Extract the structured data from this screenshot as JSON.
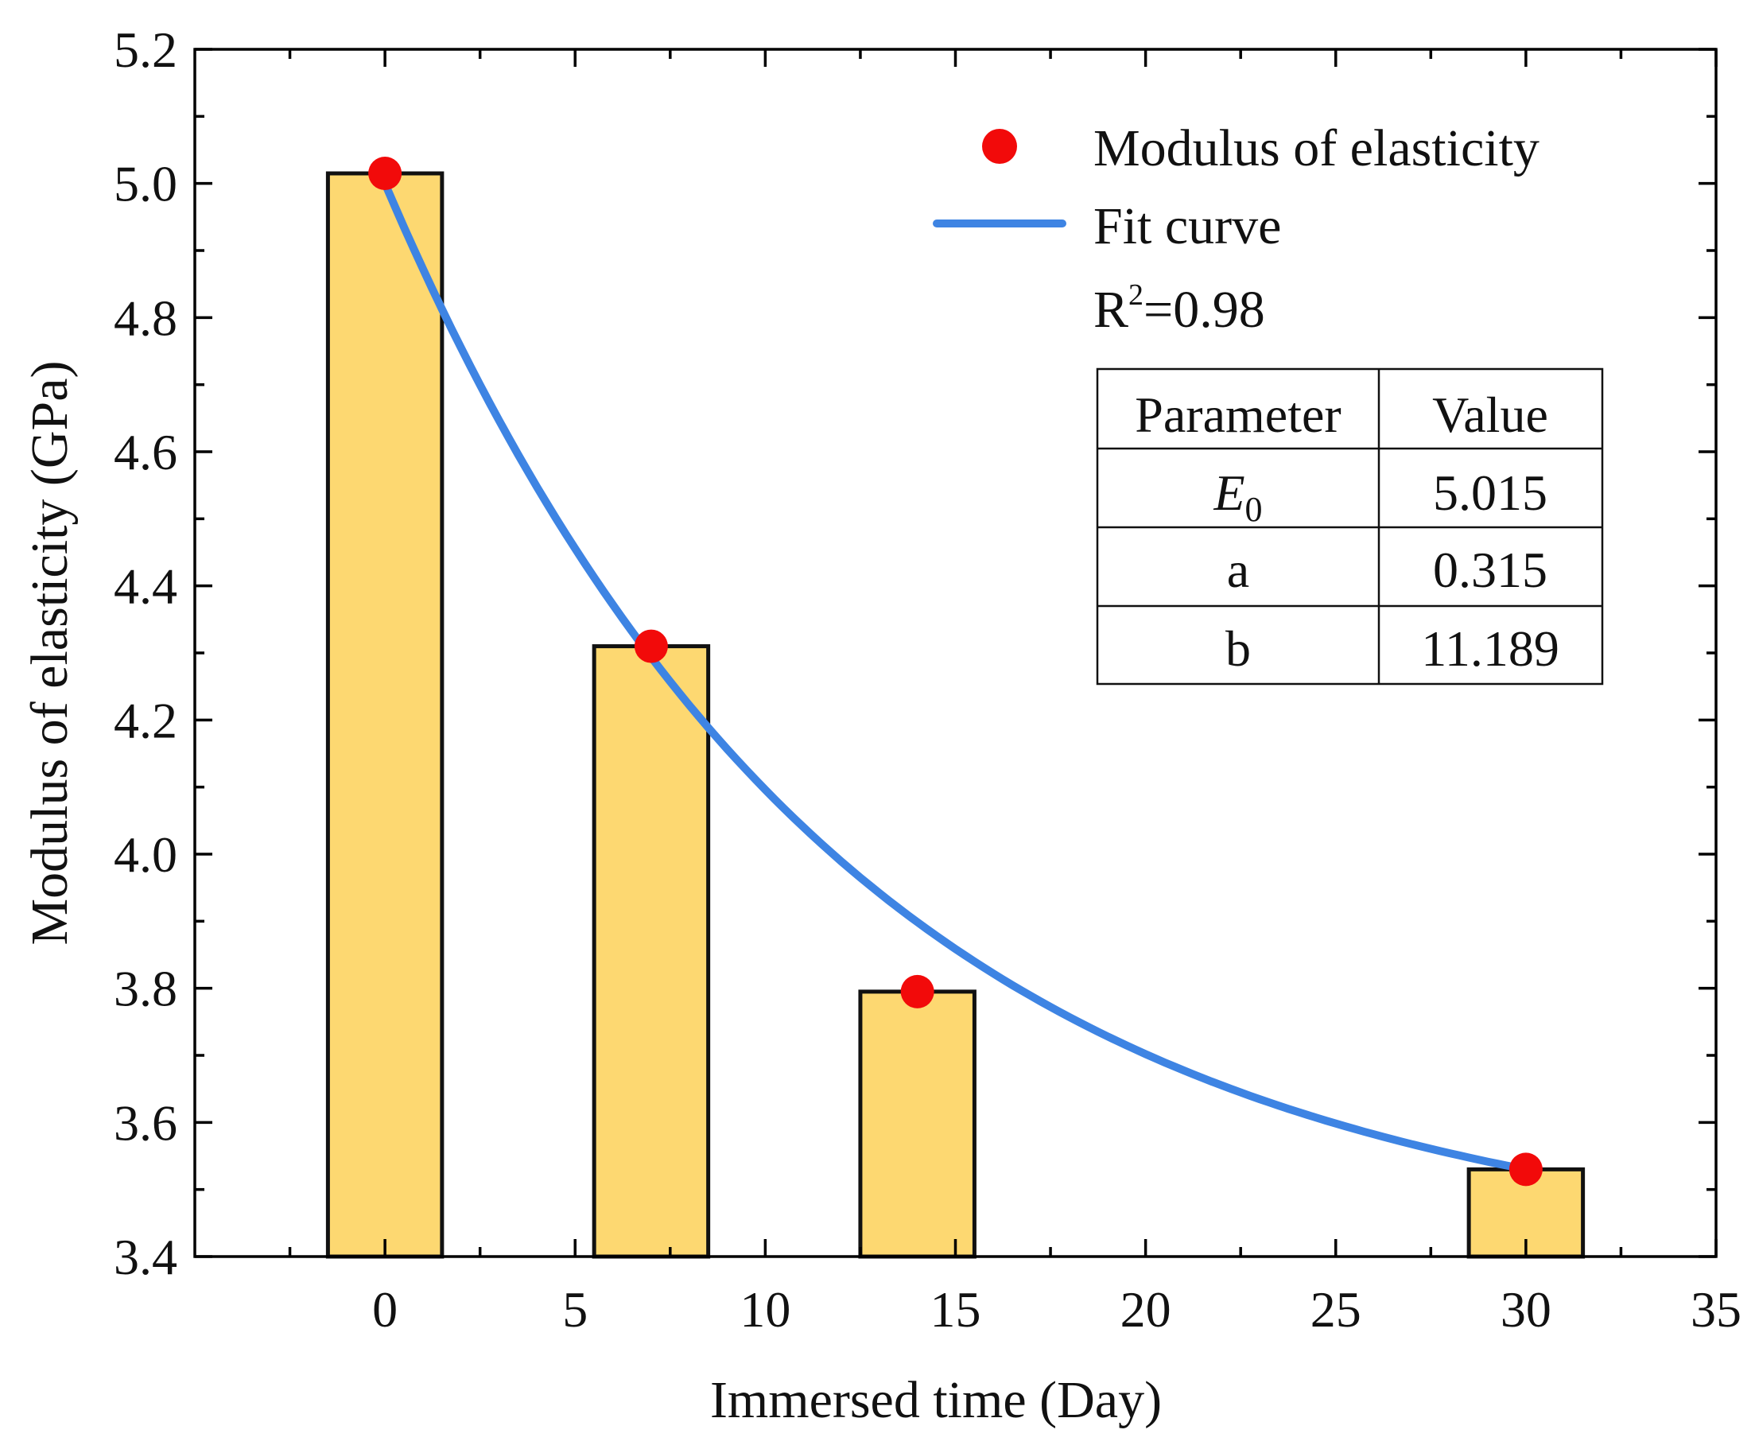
{
  "chart_data": {
    "type": "bar",
    "title": "",
    "xlabel": "Immersed time (Day)",
    "ylabel": "Modulus of elasticity (GPa)",
    "xlim": [
      -5,
      35
    ],
    "ylim": [
      3.4,
      5.2
    ],
    "x_ticks": [
      "0",
      "5",
      "10",
      "15",
      "20",
      "25",
      "30",
      "35"
    ],
    "y_ticks": [
      "3.4",
      "3.6",
      "3.8",
      "4.0",
      "4.2",
      "4.4",
      "4.6",
      "4.8",
      "5.0",
      "5.2"
    ],
    "x": [
      0,
      7,
      14,
      30
    ],
    "values": [
      5.015,
      4.31,
      3.795,
      3.53
    ],
    "series": [
      {
        "name": "Modulus of elasticity",
        "type": "scatter",
        "x": [
          0,
          7,
          14,
          30
        ],
        "values": [
          5.015,
          4.31,
          3.795,
          3.53
        ],
        "color": "#F20A0A"
      },
      {
        "name": "Fit curve",
        "type": "line",
        "model": "y = E0 - a*b*(1 - exp(-t/b))... fitted exponential decay",
        "color": "#3E84E3"
      }
    ],
    "legend": {
      "position": "top-right",
      "entries": [
        "Modulus of elasticity",
        "Fit curve"
      ],
      "r2_prefix": "R",
      "r2_sup": "2",
      "r2_value": "=0.98"
    },
    "fit_table": {
      "headers": [
        "Parameter",
        "Value"
      ],
      "rows": [
        {
          "param": "E",
          "sub": "0",
          "value": "5.015"
        },
        {
          "param": "a",
          "sub": "",
          "value": "0.315"
        },
        {
          "param": "b",
          "sub": "",
          "value": "11.189"
        }
      ]
    },
    "colors": {
      "bar": "#FDD871",
      "point": "#F20A0A",
      "fit": "#3E84E3"
    }
  }
}
